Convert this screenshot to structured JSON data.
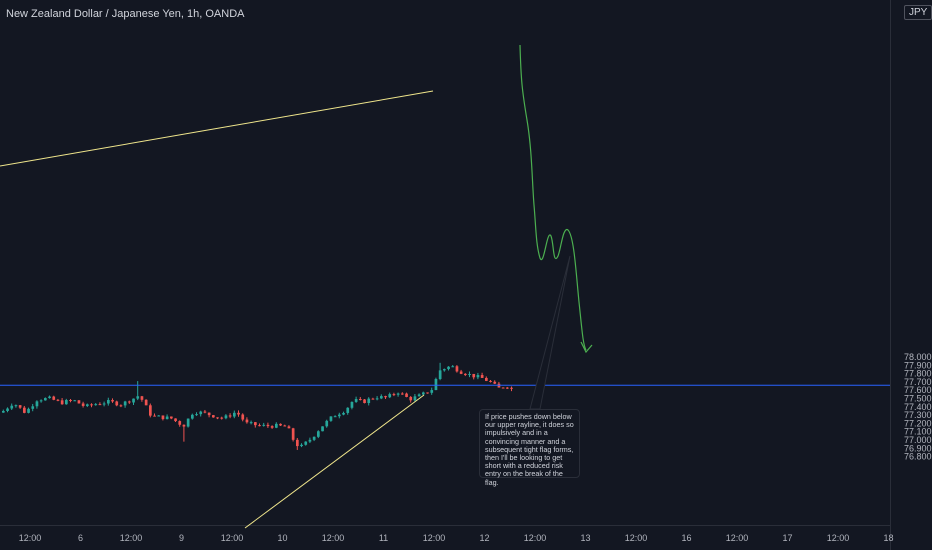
{
  "header": {
    "title": "New Zealand Dollar / Japanese Yen, 1h, OANDA"
  },
  "currency": "JPY",
  "annotation_text": "If price pushes down below our upper rayline, it does so impulsively and in a convincing manner and a subsequent tight flag forms, then I'll be looking to get short with a reduced risk entry on the break of the flag.",
  "colors": {
    "background": "#131722",
    "up_candle": "#26a69a",
    "down_candle": "#ef5350",
    "trendline": "#f0e68c",
    "horizontal_ray": "#2962ff",
    "projection": "#4caf50"
  },
  "chart_data": {
    "type": "candlestick",
    "title": "New Zealand Dollar / Japanese Yen, 1h, OANDA",
    "xlabel": "",
    "ylabel": "",
    "y_unit": "JPY",
    "ylim": [
      76.78,
      78.04
    ],
    "y_ticks": [
      "78.000",
      "77.900",
      "77.800",
      "77.700",
      "77.600",
      "77.500",
      "77.400",
      "77.300",
      "77.200",
      "77.100",
      "77.000",
      "76.900",
      "76.800"
    ],
    "x_ticks": [
      "12:00",
      "6",
      "12:00",
      "9",
      "12:00",
      "10",
      "12:00",
      "11",
      "12:00",
      "12",
      "12:00",
      "13",
      "12:00",
      "16",
      "12:00",
      "17",
      "12:00",
      "18"
    ],
    "horizontal_level": 77.66,
    "grid": false,
    "legend": "none"
  }
}
